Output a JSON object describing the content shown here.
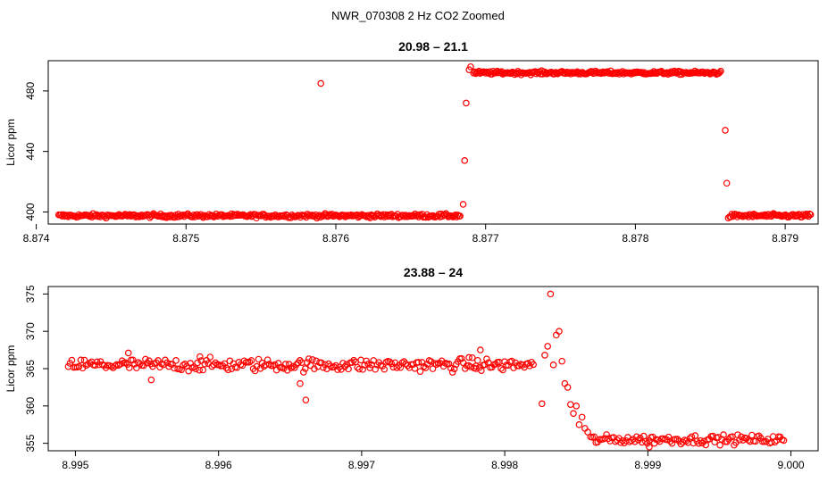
{
  "figure": {
    "title": "NWR_070308  2 Hz CO2 Zoomed"
  },
  "chart_data": [
    {
      "type": "scatter",
      "title": "20.98 – 21.1",
      "xlabel": "",
      "ylabel": "Licor ppm",
      "xlim": [
        8.87408,
        8.87922
      ],
      "ylim": [
        392,
        500
      ],
      "xticks": [
        8.874,
        8.875,
        8.876,
        8.877,
        8.878,
        8.879
      ],
      "xtick_labels": [
        "8.874",
        "8.875",
        "8.876",
        "8.877",
        "8.878",
        "8.879"
      ],
      "yticks": [
        400,
        440,
        480
      ],
      "ytick_labels": [
        "400",
        "440",
        "480"
      ],
      "grid": false,
      "legend": "none",
      "marker": "open-circle",
      "color": "#ff0000",
      "segments": [
        {
          "x_start": 8.87415,
          "x_end": 8.87683,
          "n": 340,
          "y": 397.5,
          "jitter": 1.0
        },
        {
          "x_start": 8.87692,
          "x_end": 8.87857,
          "n": 230,
          "y": 492.0,
          "jitter": 0.9
        },
        {
          "x_start": 8.87863,
          "x_end": 8.87917,
          "n": 75,
          "y": 397.5,
          "jitter": 1.0
        }
      ],
      "points": [
        [
          8.87685,
          405
        ],
        [
          8.87686,
          434
        ],
        [
          8.87687,
          472
        ],
        [
          8.87689,
          494
        ],
        [
          8.8769,
          496
        ],
        [
          8.8759,
          485
        ],
        [
          8.8786,
          454
        ],
        [
          8.87861,
          419
        ],
        [
          8.87862,
          396
        ]
      ]
    },
    {
      "type": "scatter",
      "title": "23.88 – 24",
      "xlabel": "",
      "ylabel": "Licor ppm",
      "xlim": [
        8.99481,
        9.00019
      ],
      "ylim": [
        354,
        376
      ],
      "xticks": [
        8.995,
        8.996,
        8.997,
        8.998,
        8.999,
        9.0
      ],
      "xtick_labels": [
        "8.995",
        "8.996",
        "8.997",
        "8.998",
        "8.999",
        "9.000"
      ],
      "yticks": [
        355,
        360,
        365,
        370,
        375
      ],
      "ytick_labels": [
        "355",
        "360",
        "365",
        "370",
        "375"
      ],
      "grid": false,
      "legend": "none",
      "marker": "open-circle",
      "color": "#ff0000",
      "segments": [
        {
          "x_start": 8.99495,
          "x_end": 8.9982,
          "n": 260,
          "y": 365.5,
          "jitter": 0.7
        },
        {
          "x_start": 8.9986,
          "x_end": 8.99995,
          "n": 110,
          "y": 355.5,
          "jitter": 0.5
        }
      ],
      "points": [
        [
          8.99537,
          367.1
        ],
        [
          8.99553,
          363.5
        ],
        [
          8.99587,
          366.6
        ],
        [
          8.99661,
          360.8
        ],
        [
          8.99657,
          363.0
        ],
        [
          8.99783,
          367.5
        ],
        [
          8.99775,
          366.5
        ],
        [
          8.9978,
          365.0
        ],
        [
          8.99826,
          360.3
        ],
        [
          8.99828,
          366.8
        ],
        [
          8.9983,
          368.0
        ],
        [
          8.99832,
          375.0
        ],
        [
          8.99834,
          365.5
        ],
        [
          8.99836,
          369.5
        ],
        [
          8.99838,
          370.0
        ],
        [
          8.9984,
          366.0
        ],
        [
          8.99842,
          363.0
        ],
        [
          8.99844,
          362.5
        ],
        [
          8.99846,
          360.2
        ],
        [
          8.99848,
          359.0
        ],
        [
          8.9985,
          360.0
        ],
        [
          8.99852,
          357.5
        ],
        [
          8.99854,
          358.5
        ],
        [
          8.99856,
          357.0
        ],
        [
          8.99858,
          356.5
        ],
        [
          8.99901,
          354.5
        ]
      ]
    }
  ]
}
